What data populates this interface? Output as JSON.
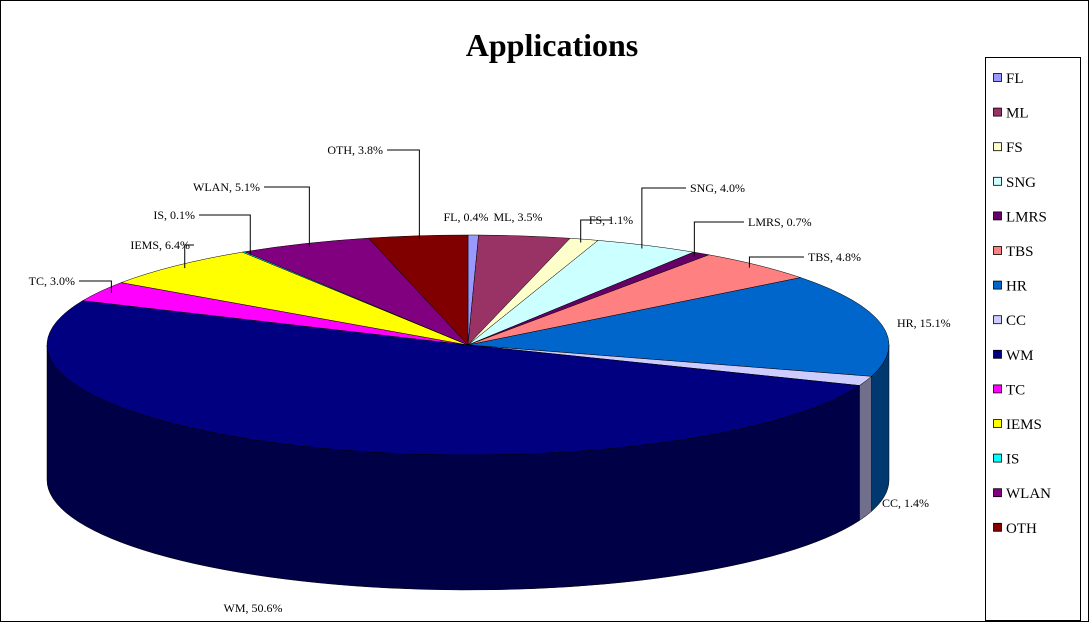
{
  "chart_data": {
    "type": "pie3d",
    "title": "Applications",
    "categories": [
      "FL",
      "ML",
      "FS",
      "SNG",
      "LMRS",
      "TBS",
      "HR",
      "CC",
      "WM",
      "TC",
      "IEMS",
      "IS",
      "WLAN",
      "OTH"
    ],
    "values": [
      0.4,
      3.5,
      1.1,
      4.0,
      0.7,
      4.8,
      15.1,
      1.4,
      50.6,
      3.0,
      6.4,
      0.1,
      5.1,
      3.8
    ],
    "value_labels": [
      "FL, 0.4%",
      "ML, 3.5%",
      "FS, 1.1%",
      "SNG, 4.0%",
      "LMRS, 0.7%",
      "TBS, 4.8%",
      "HR, 15.1%",
      "CC, 1.4%",
      "WM, 50.6%",
      "TC, 3.0%",
      "IEMS, 6.4%",
      "IS, 0.1%",
      "WLAN, 5.1%",
      "OTH, 3.8%"
    ],
    "colors": [
      "#9999ff",
      "#993366",
      "#ffffcc",
      "#ccffff",
      "#660066",
      "#ff8080",
      "#0066cc",
      "#ccccff",
      "#000080",
      "#ff00ff",
      "#ffff00",
      "#00ffff",
      "#800080",
      "#800000"
    ],
    "legend": "right"
  }
}
